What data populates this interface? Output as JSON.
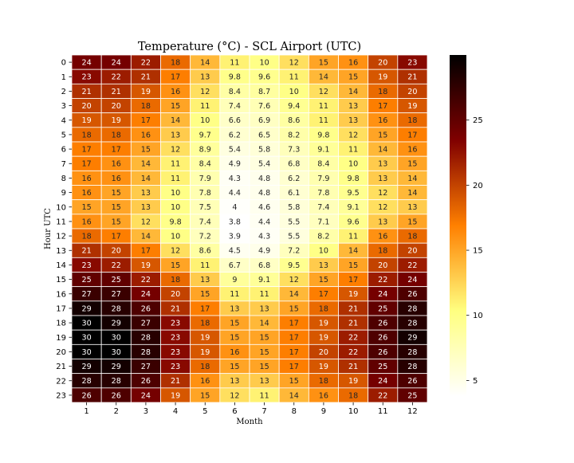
{
  "chart_data": {
    "type": "heatmap",
    "title": "Temperature (°C) - SCL Airport (UTC)",
    "xlabel": "Month",
    "ylabel": "Hour UTC",
    "x_categories": [
      "1",
      "2",
      "3",
      "4",
      "5",
      "6",
      "7",
      "8",
      "9",
      "10",
      "11",
      "12"
    ],
    "y_categories": [
      "0",
      "1",
      "2",
      "3",
      "4",
      "5",
      "6",
      "7",
      "8",
      "9",
      "10",
      "11",
      "12",
      "13",
      "14",
      "15",
      "16",
      "17",
      "18",
      "19",
      "20",
      "21",
      "22",
      "23"
    ],
    "cell_labels": [
      [
        "24",
        "24",
        "22",
        "18",
        "14",
        "11",
        "10",
        "12",
        "15",
        "16",
        "20",
        "23"
      ],
      [
        "23",
        "22",
        "21",
        "17",
        "13",
        "9.8",
        "9.6",
        "11",
        "14",
        "15",
        "19",
        "21"
      ],
      [
        "21",
        "21",
        "19",
        "16",
        "12",
        "8.4",
        "8.7",
        "10",
        "12",
        "14",
        "18",
        "20"
      ],
      [
        "20",
        "20",
        "18",
        "15",
        "11",
        "7.4",
        "7.6",
        "9.4",
        "11",
        "13",
        "17",
        "19"
      ],
      [
        "19",
        "19",
        "17",
        "14",
        "10",
        "6.6",
        "6.9",
        "8.6",
        "11",
        "13",
        "16",
        "18"
      ],
      [
        "18",
        "18",
        "16",
        "13",
        "9.7",
        "6.2",
        "6.5",
        "8.2",
        "9.8",
        "12",
        "15",
        "17"
      ],
      [
        "17",
        "17",
        "15",
        "12",
        "8.9",
        "5.4",
        "5.8",
        "7.3",
        "9.1",
        "11",
        "14",
        "16"
      ],
      [
        "17",
        "16",
        "14",
        "11",
        "8.4",
        "4.9",
        "5.4",
        "6.8",
        "8.4",
        "10",
        "13",
        "15"
      ],
      [
        "16",
        "16",
        "14",
        "11",
        "7.9",
        "4.3",
        "4.8",
        "6.2",
        "7.9",
        "9.8",
        "13",
        "14"
      ],
      [
        "16",
        "15",
        "13",
        "10",
        "7.8",
        "4.4",
        "4.8",
        "6.1",
        "7.8",
        "9.5",
        "12",
        "14"
      ],
      [
        "15",
        "15",
        "13",
        "10",
        "7.5",
        "4",
        "4.6",
        "5.8",
        "7.4",
        "9.1",
        "12",
        "13"
      ],
      [
        "16",
        "15",
        "12",
        "9.8",
        "7.4",
        "3.8",
        "4.4",
        "5.5",
        "7.1",
        "9.6",
        "13",
        "15"
      ],
      [
        "18",
        "17",
        "14",
        "10",
        "7.2",
        "3.9",
        "4.3",
        "5.5",
        "8.2",
        "11",
        "16",
        "18"
      ],
      [
        "21",
        "20",
        "17",
        "12",
        "8.6",
        "4.5",
        "4.9",
        "7.2",
        "10",
        "14",
        "18",
        "20"
      ],
      [
        "23",
        "22",
        "19",
        "15",
        "11",
        "6.7",
        "6.8",
        "9.5",
        "13",
        "15",
        "20",
        "22"
      ],
      [
        "25",
        "25",
        "22",
        "18",
        "13",
        "9",
        "9.1",
        "12",
        "15",
        "17",
        "22",
        "24"
      ],
      [
        "27",
        "27",
        "24",
        "20",
        "15",
        "11",
        "11",
        "14",
        "17",
        "19",
        "24",
        "26"
      ],
      [
        "29",
        "28",
        "26",
        "21",
        "17",
        "13",
        "13",
        "15",
        "18",
        "21",
        "25",
        "28"
      ],
      [
        "30",
        "29",
        "27",
        "23",
        "18",
        "15",
        "14",
        "17",
        "19",
        "21",
        "26",
        "28"
      ],
      [
        "30",
        "30",
        "28",
        "23",
        "19",
        "15",
        "15",
        "17",
        "19",
        "22",
        "26",
        "29"
      ],
      [
        "30",
        "30",
        "28",
        "23",
        "19",
        "16",
        "15",
        "17",
        "20",
        "22",
        "26",
        "28"
      ],
      [
        "29",
        "29",
        "27",
        "23",
        "18",
        "15",
        "15",
        "17",
        "19",
        "21",
        "25",
        "28"
      ],
      [
        "28",
        "28",
        "26",
        "21",
        "16",
        "13",
        "13",
        "15",
        "18",
        "19",
        "24",
        "26"
      ],
      [
        "26",
        "26",
        "24",
        "19",
        "15",
        "12",
        "11",
        "14",
        "16",
        "18",
        "22",
        "25"
      ]
    ],
    "colormap": "afmhot_r",
    "color_range": [
      3.8,
      30
    ],
    "colorbar_ticks": [
      "5",
      "10",
      "15",
      "20",
      "25"
    ],
    "cell_border_color": "#ffffff",
    "light_text_color": "#ffffff",
    "dark_text_color": "#262626"
  }
}
